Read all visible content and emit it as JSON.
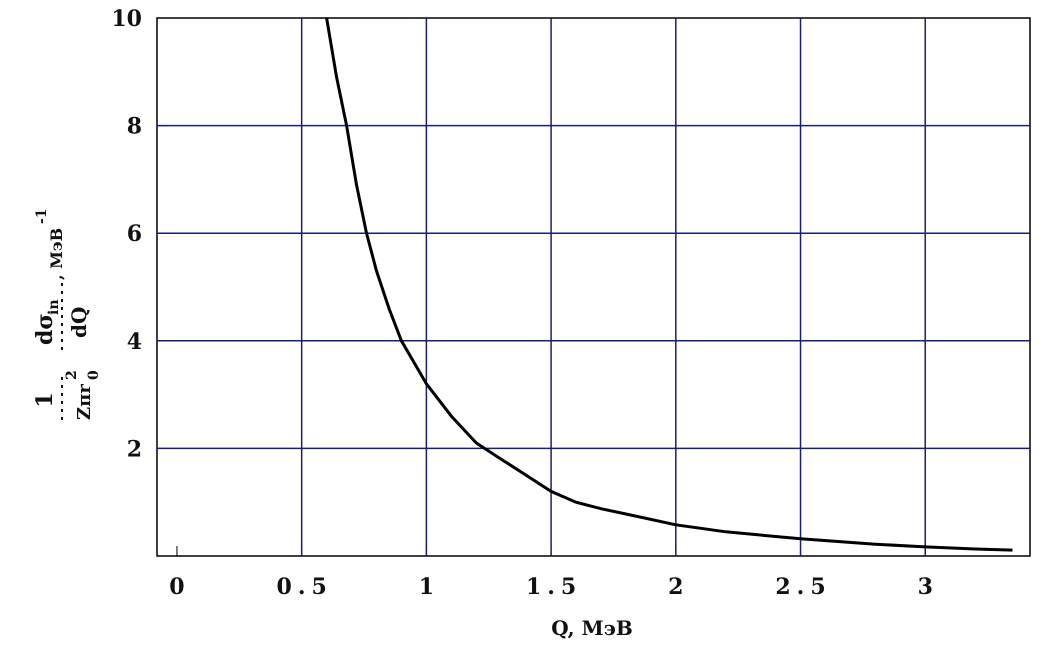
{
  "chart_data": {
    "type": "line",
    "x_label": "Q, МэВ",
    "y_label": {
      "factor_numerator": "1",
      "factor_denominator": "Zπr",
      "r_subscript": "0",
      "r_power": "2",
      "derivative_numerator": "dσ",
      "sigma_subscript": "in",
      "derivative_denominator": "dQ",
      "unit": ", МэВ",
      "unit_power": "-1"
    },
    "series": [
      {
        "color": "#000000",
        "x": [
          0.6,
          0.64,
          0.68,
          0.72,
          0.76,
          0.8,
          0.85,
          0.9,
          0.95,
          1.0,
          1.1,
          1.2,
          1.3,
          1.4,
          1.5,
          1.6,
          1.7,
          1.8,
          2.0,
          2.2,
          2.5,
          2.8,
          3.0,
          3.2,
          3.35
        ],
        "values": [
          10,
          8.9,
          8.0,
          6.9,
          6.0,
          5.3,
          4.6,
          4.0,
          3.6,
          3.2,
          2.6,
          2.1,
          1.8,
          1.5,
          1.2,
          1.0,
          0.88,
          0.78,
          0.58,
          0.45,
          0.32,
          0.22,
          0.17,
          0.13,
          0.11
        ]
      }
    ],
    "xlim": [
      -0.08,
      3.42
    ],
    "ylim": [
      0,
      10.0
    ],
    "xticks": [
      0,
      0.5,
      1,
      1.5,
      2,
      2.5,
      3
    ],
    "yticks": [
      2,
      4,
      6,
      8,
      10
    ],
    "grid": true,
    "grid_color": "#1a1f6b"
  }
}
